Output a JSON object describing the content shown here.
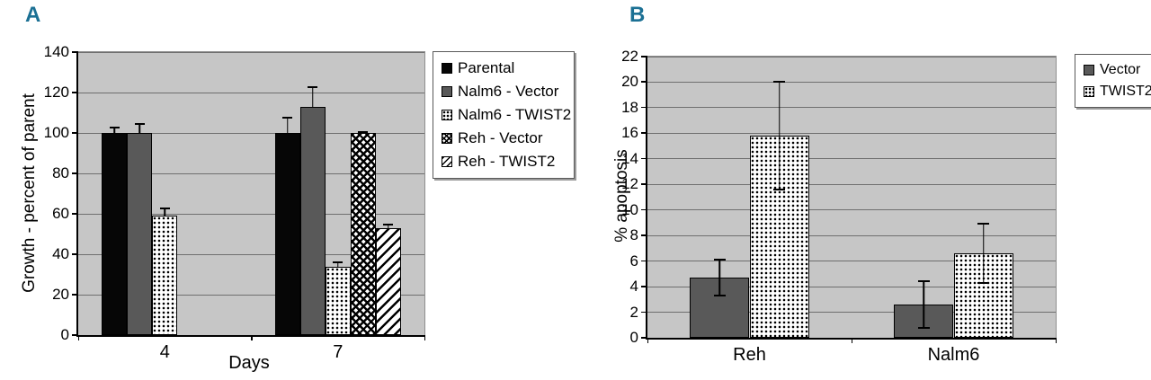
{
  "panels": [
    {
      "letter": "A"
    },
    {
      "letter": "B"
    }
  ],
  "colors": {
    "panel_letter": "#1b7094",
    "plot_background": "#c6c6c6",
    "gridline": "#6f6f6f",
    "bar_black": "#060606",
    "bar_gray": "#595959",
    "axis": "#000000"
  },
  "chart_data": [
    {
      "panel": "A",
      "type": "bar",
      "title": "",
      "ylabel": "Growth - percent of parent",
      "xlabel": "Days",
      "ylim": [
        0,
        140
      ],
      "ytick_step": 20,
      "grid": true,
      "legend_position": "right",
      "error_style": "upper",
      "categories": [
        "4",
        "7"
      ],
      "series": [
        {
          "name": "Parental",
          "pattern": "solid-black",
          "values": [
            100,
            100
          ],
          "errors": [
            3,
            8
          ]
        },
        {
          "name": "Nalm6 - Vector",
          "pattern": "solid-gray",
          "values": [
            100,
            113
          ],
          "errors": [
            5,
            10
          ]
        },
        {
          "name": "Nalm6 - TWIST2",
          "pattern": "dots",
          "values": [
            59,
            34
          ],
          "errors": [
            4,
            2.5
          ]
        },
        {
          "name": "Reh - Vector",
          "pattern": "checker",
          "values": [
            null,
            100
          ],
          "errors": [
            null,
            1
          ]
        },
        {
          "name": "Reh - TWIST2",
          "pattern": "diag-hatch",
          "values": [
            null,
            53
          ],
          "errors": [
            null,
            2
          ]
        }
      ]
    },
    {
      "panel": "B",
      "type": "bar",
      "title": "",
      "ylabel": "% apoptosis",
      "xlabel": "",
      "ylim": [
        0,
        22
      ],
      "ytick_step": 2,
      "grid": true,
      "legend_position": "top-right",
      "error_style": "both",
      "categories": [
        "Reh",
        "Nalm6"
      ],
      "series": [
        {
          "name": "Vector",
          "pattern": "solid-gray",
          "values": [
            4.7,
            2.6
          ],
          "errors": [
            1.5,
            1.9
          ]
        },
        {
          "name": "TWIST2",
          "pattern": "dots",
          "values": [
            15.8,
            6.6
          ],
          "errors": [
            4.3,
            2.4
          ]
        }
      ]
    }
  ]
}
